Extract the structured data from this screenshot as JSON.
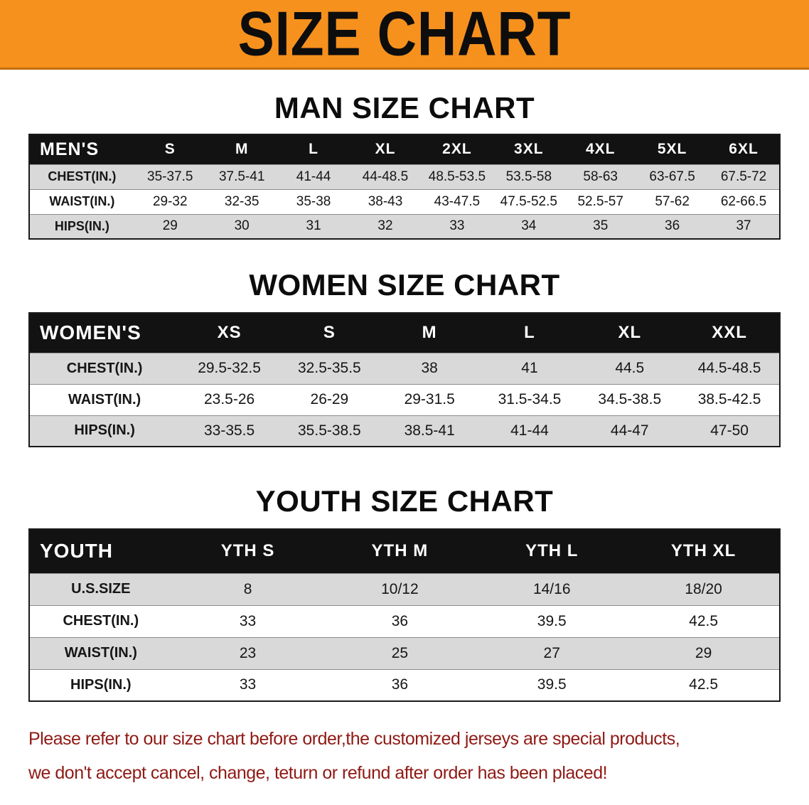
{
  "banner": {
    "title": "SIZE CHART"
  },
  "sections": [
    {
      "id": "men",
      "title": "MAN SIZE CHART",
      "header_label": "MEN'S",
      "columns": [
        "S",
        "M",
        "L",
        "XL",
        "2XL",
        "3XL",
        "4XL",
        "5XL",
        "6XL"
      ],
      "rows": [
        {
          "label": "CHEST(IN.)",
          "values": [
            "35-37.5",
            "37.5-41",
            "41-44",
            "44-48.5",
            "48.5-53.5",
            "53.5-58",
            "58-63",
            "63-67.5",
            "67.5-72"
          ]
        },
        {
          "label": "WAIST(IN.)",
          "values": [
            "29-32",
            "32-35",
            "35-38",
            "38-43",
            "43-47.5",
            "47.5-52.5",
            "52.5-57",
            "57-62",
            "62-66.5"
          ]
        },
        {
          "label": "HIPS(IN.)",
          "values": [
            "29",
            "30",
            "31",
            "32",
            "33",
            "34",
            "35",
            "36",
            "37"
          ]
        }
      ]
    },
    {
      "id": "women",
      "title": "WOMEN SIZE CHART",
      "header_label": "WOMEN'S",
      "columns": [
        "XS",
        "S",
        "M",
        "L",
        "XL",
        "XXL"
      ],
      "rows": [
        {
          "label": "CHEST(IN.)",
          "values": [
            "29.5-32.5",
            "32.5-35.5",
            "38",
            "41",
            "44.5",
            "44.5-48.5"
          ]
        },
        {
          "label": "WAIST(IN.)",
          "values": [
            "23.5-26",
            "26-29",
            "29-31.5",
            "31.5-34.5",
            "34.5-38.5",
            "38.5-42.5"
          ]
        },
        {
          "label": "HIPS(IN.)",
          "values": [
            "33-35.5",
            "35.5-38.5",
            "38.5-41",
            "41-44",
            "44-47",
            "47-50"
          ]
        }
      ]
    },
    {
      "id": "youth",
      "title": "YOUTH SIZE CHART",
      "header_label": "YOUTH",
      "columns": [
        "YTH S",
        "YTH M",
        "YTH L",
        "YTH XL"
      ],
      "rows": [
        {
          "label": "U.S.SIZE",
          "values": [
            "8",
            "10/12",
            "14/16",
            "18/20"
          ]
        },
        {
          "label": "CHEST(IN.)",
          "values": [
            "33",
            "36",
            "39.5",
            "42.5"
          ]
        },
        {
          "label": "WAIST(IN.)",
          "values": [
            "23",
            "25",
            "27",
            "29"
          ]
        },
        {
          "label": "HIPS(IN.)",
          "values": [
            "33",
            "36",
            "39.5",
            "42.5"
          ]
        }
      ]
    }
  ],
  "footer": {
    "line1": "Please refer to our size chart before order,the customized jerseys are special products,",
    "line2": "we don't accept cancel, change, teturn or refund after order has been placed!"
  },
  "colors": {
    "banner_bg": "#f6911e",
    "table_header_bg": "#121212",
    "shaded_row_bg": "#d9d9d9",
    "notice_text": "#8f1a15"
  }
}
